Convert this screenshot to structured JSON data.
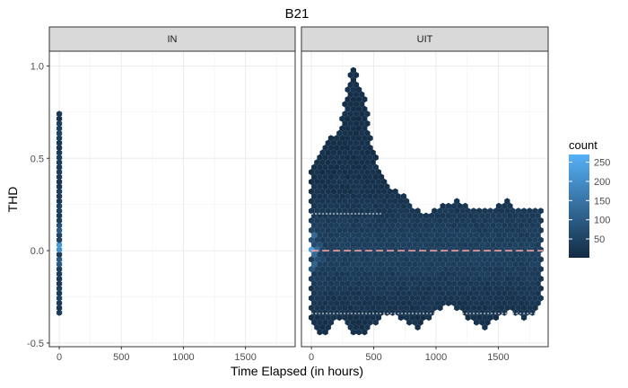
{
  "chart_data": {
    "type": "heatmap",
    "subtype": "hexbin",
    "title": "B21",
    "xlabel": "Time Elapsed (in hours)",
    "ylabel": "THD",
    "xlim": [
      -80,
      1900
    ],
    "ylim": [
      -0.52,
      1.08
    ],
    "x_ticks": [
      0,
      500,
      1000,
      1500
    ],
    "y_ticks": [
      -0.5,
      0.0,
      0.5,
      1.0
    ],
    "x_tick_labels": [
      "0",
      "500",
      "1000",
      "1500"
    ],
    "y_tick_labels": [
      "-0.5",
      "0.0",
      "0.5",
      "1.0"
    ],
    "grid": true,
    "legend_position": "right",
    "colors": {
      "low": "#132b43",
      "high": "#56b1f7",
      "mean_line": "#f4a0a0",
      "quantile_line": "#ffffff"
    },
    "fill_scale": {
      "title": "count",
      "range": [
        1,
        270
      ],
      "breaks": [
        50,
        100,
        150,
        200,
        250
      ],
      "labels": [
        "50",
        "100",
        "150",
        "200",
        "250"
      ]
    },
    "facets": [
      {
        "label": "IN",
        "columns": [
          {
            "x": 0,
            "ymin": -0.34,
            "ymax": 0.75
          }
        ],
        "hot_spots": [
          {
            "x": 0,
            "y": 0.02,
            "count": 260
          },
          {
            "x": 0,
            "y": 0.12,
            "count": 110
          },
          {
            "x": 0,
            "y": -0.06,
            "count": 120
          }
        ],
        "mean_line": null,
        "quantile_lines": []
      },
      {
        "label": "UIT",
        "columns": [
          {
            "x": 0,
            "ymin": -0.4,
            "ymax": 0.45
          },
          {
            "x": 60,
            "ymin": -0.45,
            "ymax": 0.5
          },
          {
            "x": 110,
            "ymin": -0.45,
            "ymax": 0.56
          },
          {
            "x": 160,
            "ymin": -0.4,
            "ymax": 0.62
          },
          {
            "x": 210,
            "ymin": -0.38,
            "ymax": 0.65
          },
          {
            "x": 260,
            "ymin": -0.38,
            "ymax": 0.78
          },
          {
            "x": 300,
            "ymin": -0.4,
            "ymax": 0.96
          },
          {
            "x": 340,
            "ymin": -0.45,
            "ymax": 1.02
          },
          {
            "x": 380,
            "ymin": -0.45,
            "ymax": 0.92
          },
          {
            "x": 420,
            "ymin": -0.45,
            "ymax": 0.86
          },
          {
            "x": 460,
            "ymin": -0.42,
            "ymax": 0.7
          },
          {
            "x": 510,
            "ymin": -0.4,
            "ymax": 0.52
          },
          {
            "x": 560,
            "ymin": -0.35,
            "ymax": 0.42
          },
          {
            "x": 620,
            "ymin": -0.35,
            "ymax": 0.35
          },
          {
            "x": 680,
            "ymin": -0.35,
            "ymax": 0.32
          },
          {
            "x": 740,
            "ymin": -0.38,
            "ymax": 0.3
          },
          {
            "x": 800,
            "ymin": -0.4,
            "ymax": 0.26
          },
          {
            "x": 860,
            "ymin": -0.42,
            "ymax": 0.22
          },
          {
            "x": 920,
            "ymin": -0.38,
            "ymax": 0.2
          },
          {
            "x": 980,
            "ymin": -0.35,
            "ymax": 0.22
          },
          {
            "x": 1040,
            "ymin": -0.32,
            "ymax": 0.24
          },
          {
            "x": 1100,
            "ymin": -0.3,
            "ymax": 0.26
          },
          {
            "x": 1160,
            "ymin": -0.32,
            "ymax": 0.28
          },
          {
            "x": 1220,
            "ymin": -0.35,
            "ymax": 0.26
          },
          {
            "x": 1280,
            "ymin": -0.38,
            "ymax": 0.24
          },
          {
            "x": 1340,
            "ymin": -0.4,
            "ymax": 0.22
          },
          {
            "x": 1400,
            "ymin": -0.42,
            "ymax": 0.22
          },
          {
            "x": 1460,
            "ymin": -0.38,
            "ymax": 0.24
          },
          {
            "x": 1520,
            "ymin": -0.35,
            "ymax": 0.26
          },
          {
            "x": 1580,
            "ymin": -0.33,
            "ymax": 0.28
          },
          {
            "x": 1640,
            "ymin": -0.35,
            "ymax": 0.24
          },
          {
            "x": 1700,
            "ymin": -0.38,
            "ymax": 0.22
          },
          {
            "x": 1760,
            "ymin": -0.35,
            "ymax": 0.22
          },
          {
            "x": 1810,
            "ymin": -0.32,
            "ymax": 0.24
          },
          {
            "x": 1850,
            "ymin": -0.3,
            "ymax": 0.24
          }
        ],
        "hot_spots": [
          {
            "x": 0,
            "y": 0.0,
            "count": 240
          },
          {
            "x": 0,
            "y": 0.08,
            "count": 150
          },
          {
            "x": 0,
            "y": -0.08,
            "count": 140
          },
          {
            "x": 60,
            "y": 0.02,
            "count": 90
          },
          {
            "x": 60,
            "y": -0.05,
            "count": 80
          }
        ],
        "mean_line": {
          "y": 0.0,
          "x_range": [
            0,
            1860
          ]
        },
        "quantile_lines": [
          {
            "y": 0.2,
            "x_range": [
              0,
              560
            ]
          },
          {
            "y": -0.34,
            "x_range": [
              0,
              1860
            ]
          }
        ]
      }
    ]
  }
}
